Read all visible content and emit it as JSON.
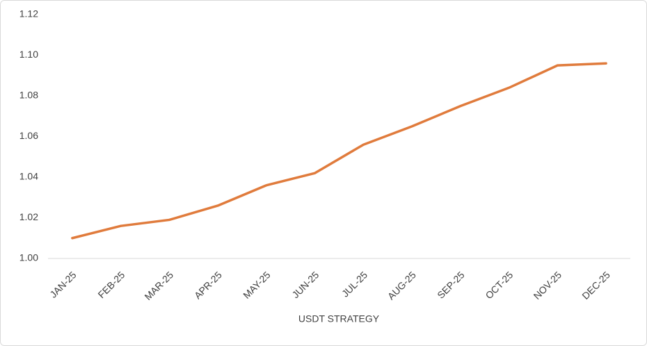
{
  "chart_data": {
    "type": "line",
    "x_label": "USDT STRATEGY",
    "categories": [
      "JAN-25",
      "FEB-25",
      "MAR-25",
      "APR-25",
      "MAY-25",
      "JUN-25",
      "JUL-25",
      "AUG-25",
      "SEP-25",
      "OCT-25",
      "NOV-25",
      "DEC-25"
    ],
    "values": [
      1.01,
      1.016,
      1.019,
      1.026,
      1.036,
      1.042,
      1.056,
      1.065,
      1.075,
      1.084,
      1.095,
      1.096
    ],
    "color": "#e07b3c",
    "ylim": [
      1.0,
      1.12
    ],
    "yticks": [
      {
        "value": 1.0,
        "label": "1.00"
      },
      1.02,
      1.04,
      1.06,
      1.08,
      {
        "value": 1.1,
        "label": "1.10"
      },
      1.12
    ],
    "grid": false
  }
}
